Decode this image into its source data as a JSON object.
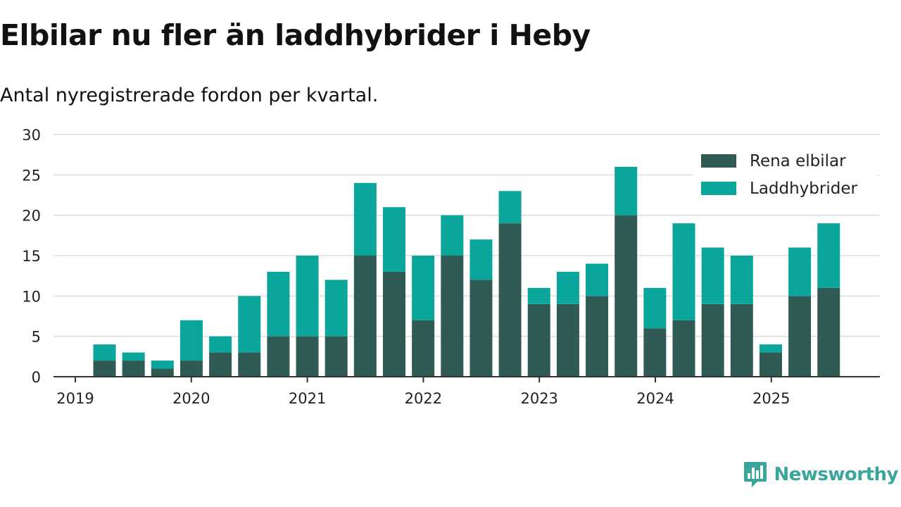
{
  "title": "Elbilar nu fler än laddhybrider i Heby",
  "subtitle": "Antal nyregistrerade fordon per kvartal.",
  "brand": "Newsworthy",
  "colors": {
    "elbilar": "#2f5b54",
    "laddhybrider": "#0aa59b",
    "grid": "#dddddd",
    "axis": "#333333",
    "brand": "#3aa59a"
  },
  "chart_data": {
    "type": "bar",
    "stacked": true,
    "categories": [
      "2019 Q2",
      "2019 Q3",
      "2019 Q4",
      "2020 Q1",
      "2020 Q2",
      "2020 Q3",
      "2020 Q4",
      "2021 Q1",
      "2021 Q2",
      "2021 Q3",
      "2021 Q4",
      "2022 Q1",
      "2022 Q2",
      "2022 Q3",
      "2022 Q4",
      "2023 Q1",
      "2023 Q2",
      "2023 Q3",
      "2023 Q4",
      "2024 Q1",
      "2024 Q2",
      "2024 Q3",
      "2024 Q4",
      "2025 Q1",
      "2025 Q2",
      "2025 Q3"
    ],
    "x_tick_labels": [
      "2019",
      "2020",
      "2021",
      "2022",
      "2023",
      "2024",
      "2025"
    ],
    "y_ticks": [
      0,
      5,
      10,
      15,
      20,
      25,
      30
    ],
    "ylim": [
      0,
      30
    ],
    "grid": true,
    "legend_position": "top-right",
    "series": [
      {
        "name": "Rena elbilar",
        "color": "#2f5b54",
        "values": [
          2,
          2,
          1,
          2,
          3,
          3,
          5,
          5,
          5,
          15,
          13,
          7,
          15,
          12,
          19,
          9,
          9,
          10,
          20,
          6,
          7,
          9,
          9,
          3,
          10,
          11
        ]
      },
      {
        "name": "Laddhybrider",
        "color": "#0aa59b",
        "values": [
          2,
          1,
          1,
          5,
          2,
          7,
          8,
          10,
          7,
          9,
          8,
          8,
          5,
          5,
          4,
          2,
          4,
          4,
          6,
          5,
          12,
          7,
          6,
          1,
          6,
          8
        ]
      }
    ]
  }
}
